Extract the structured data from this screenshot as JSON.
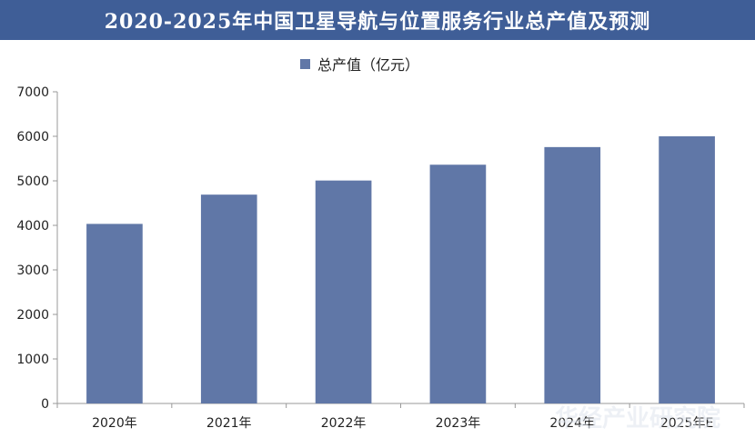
{
  "chart_data": {
    "type": "bar",
    "title": "2020-2025年中国卫星导航与位置服务行业总产值及预测",
    "categories": [
      "2020年",
      "2021年",
      "2022年",
      "2023年",
      "2024年",
      "2025年E"
    ],
    "series": [
      {
        "name": "总产值（亿元）",
        "values": [
          4033,
          4690,
          5007,
          5362,
          5758,
          6000
        ],
        "color": "#6077a7"
      }
    ],
    "xlabel": "",
    "ylabel": "",
    "ylim": [
      0,
      7000
    ],
    "yticks": [
      0,
      1000,
      2000,
      3000,
      4000,
      5000,
      6000,
      7000
    ],
    "grid": false,
    "legend": "top-center"
  },
  "colors": {
    "title_bg": "#3f5e97",
    "bar": "#6077a7",
    "axis": "#999999"
  },
  "watermark": "华经产业研究院"
}
